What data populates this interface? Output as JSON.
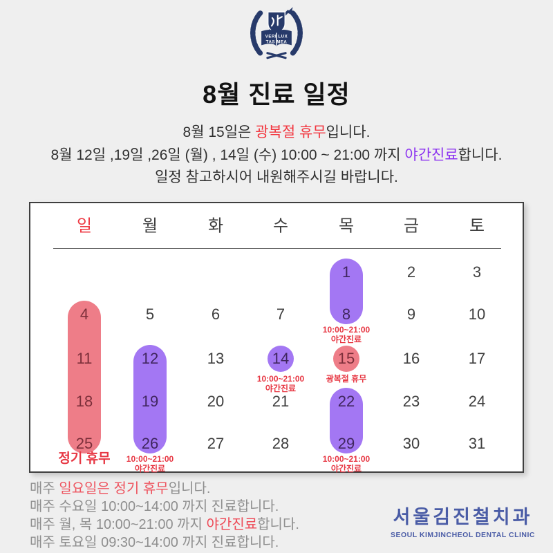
{
  "header": {
    "title": "8월 진료 일정",
    "logo": {
      "name": "university-crest",
      "color": "#273a6a",
      "motto1": "VERI LUX",
      "motto2": "TAS MEA"
    }
  },
  "notice": {
    "lines": [
      [
        {
          "text": "8월 15일은 ",
          "color": "#2f2f2f"
        },
        {
          "text": "광복절 휴무",
          "color": "#f2363f"
        },
        {
          "text": "입니다.",
          "color": "#2f2f2f"
        }
      ],
      [
        {
          "text": "8월 12일 ,19일 ,26일 (월) , 14일 (수) 10:00 ~ 21:00 까지 ",
          "color": "#2f2f2f"
        },
        {
          "text": "야간진료",
          "color": "#8c33f0"
        },
        {
          "text": "합니다.",
          "color": "#2f2f2f"
        }
      ],
      [
        {
          "text": "일정 참고하시어 내원해주시길 바랍니다.",
          "color": "#2f2f2f"
        }
      ]
    ]
  },
  "calendar": {
    "month": "8월",
    "colors": {
      "red_fill": "#ee7d88",
      "purple_fill": "#a377f3",
      "normal_text": "#3f3f3f",
      "red_text": "#7c2f3a",
      "purple_text": "#40265f",
      "note_red": "#e73743",
      "sunday_header": "#ee3b45",
      "weekday_header": "#3f3f3f"
    },
    "weekdays": [
      {
        "label": "일",
        "tone": "sunday"
      },
      {
        "label": "월",
        "tone": "weekday"
      },
      {
        "label": "화",
        "tone": "weekday"
      },
      {
        "label": "수",
        "tone": "weekday"
      },
      {
        "label": "목",
        "tone": "weekday"
      },
      {
        "label": "금",
        "tone": "weekday"
      },
      {
        "label": "토",
        "tone": "weekday"
      }
    ],
    "dates": [
      {
        "d": 1,
        "col": 4,
        "row": 0,
        "tone": "purple"
      },
      {
        "d": 2,
        "col": 5,
        "row": 0,
        "tone": "normal"
      },
      {
        "d": 3,
        "col": 6,
        "row": 0,
        "tone": "normal"
      },
      {
        "d": 4,
        "col": 0,
        "row": 1,
        "tone": "red"
      },
      {
        "d": 5,
        "col": 1,
        "row": 1,
        "tone": "normal"
      },
      {
        "d": 6,
        "col": 2,
        "row": 1,
        "tone": "normal"
      },
      {
        "d": 7,
        "col": 3,
        "row": 1,
        "tone": "normal"
      },
      {
        "d": 8,
        "col": 4,
        "row": 1,
        "tone": "purple"
      },
      {
        "d": 9,
        "col": 5,
        "row": 1,
        "tone": "normal"
      },
      {
        "d": 10,
        "col": 6,
        "row": 1,
        "tone": "normal"
      },
      {
        "d": 11,
        "col": 0,
        "row": 2,
        "tone": "red"
      },
      {
        "d": 12,
        "col": 1,
        "row": 2,
        "tone": "purple"
      },
      {
        "d": 13,
        "col": 2,
        "row": 2,
        "tone": "normal"
      },
      {
        "d": 14,
        "col": 3,
        "row": 2,
        "tone": "purple"
      },
      {
        "d": 15,
        "col": 4,
        "row": 2,
        "tone": "red"
      },
      {
        "d": 16,
        "col": 5,
        "row": 2,
        "tone": "normal"
      },
      {
        "d": 17,
        "col": 6,
        "row": 2,
        "tone": "normal"
      },
      {
        "d": 18,
        "col": 0,
        "row": 3,
        "tone": "red"
      },
      {
        "d": 19,
        "col": 1,
        "row": 3,
        "tone": "purple"
      },
      {
        "d": 20,
        "col": 2,
        "row": 3,
        "tone": "normal"
      },
      {
        "d": 21,
        "col": 3,
        "row": 3,
        "tone": "normal"
      },
      {
        "d": 22,
        "col": 4,
        "row": 3,
        "tone": "purple"
      },
      {
        "d": 23,
        "col": 5,
        "row": 3,
        "tone": "normal"
      },
      {
        "d": 24,
        "col": 6,
        "row": 3,
        "tone": "normal"
      },
      {
        "d": 25,
        "col": 0,
        "row": 4,
        "tone": "red"
      },
      {
        "d": 26,
        "col": 1,
        "row": 4,
        "tone": "purple"
      },
      {
        "d": 27,
        "col": 2,
        "row": 4,
        "tone": "normal"
      },
      {
        "d": 28,
        "col": 3,
        "row": 4,
        "tone": "normal"
      },
      {
        "d": 29,
        "col": 4,
        "row": 4,
        "tone": "purple"
      },
      {
        "d": 30,
        "col": 5,
        "row": 4,
        "tone": "normal"
      },
      {
        "d": 31,
        "col": 6,
        "row": 4,
        "tone": "normal"
      }
    ],
    "highlights": [
      {
        "id": "sunday-regular-closed",
        "shape": "pill",
        "color": "red",
        "col": 0,
        "row_start": 1,
        "row_end": 4,
        "label": "정기 휴무",
        "label_style": "big"
      },
      {
        "id": "monday-night-12-19-26",
        "shape": "pill",
        "color": "purple",
        "col": 1,
        "row_start": 2,
        "row_end": 4,
        "label": "10:00~21:00\n야간진료"
      },
      {
        "id": "thursday-night-1-8",
        "shape": "pill",
        "color": "purple",
        "col": 4,
        "row_start": 0,
        "row_end": 1,
        "label": "10:00~21:00\n야간진료"
      },
      {
        "id": "wednesday-night-14",
        "shape": "circle",
        "color": "purple",
        "col": 3,
        "row_start": 2,
        "row_end": 2,
        "label": "10:00~21:00\n야간진료"
      },
      {
        "id": "liberation-day-15",
        "shape": "circle",
        "color": "red",
        "col": 4,
        "row_start": 2,
        "row_end": 2,
        "label": "광복절 휴무"
      },
      {
        "id": "thursday-night-22-29",
        "shape": "pill",
        "color": "purple",
        "col": 4,
        "row_start": 3,
        "row_end": 4,
        "label": "10:00~21:00\n야간진료"
      }
    ]
  },
  "footer": {
    "lines": [
      [
        {
          "text": "매주 ",
          "color": "#8f8f8f"
        },
        {
          "text": "일요일은 정기 휴무",
          "color": "#ee5560"
        },
        {
          "text": "입니다.",
          "color": "#8f8f8f"
        }
      ],
      [
        {
          "text": "매주 수요일 10:00~14:00 까지 진료합니다.",
          "color": "#8f8f8f"
        }
      ],
      [
        {
          "text": "매주 월, 목 10:00~21:00 까지 ",
          "color": "#8f8f8f"
        },
        {
          "text": "야간진료",
          "color": "#ee4956"
        },
        {
          "text": "합니다.",
          "color": "#8f8f8f"
        }
      ],
      [
        {
          "text": "매주 토요일 09:30~14:00 까지 진료합니다.",
          "color": "#8f8f8f"
        }
      ]
    ],
    "clinic": {
      "korean": "서울김진철치과",
      "english": "SEOUL KIMJINCHEOL DENTAL CLINIC",
      "color": "#4a5ca6"
    }
  }
}
